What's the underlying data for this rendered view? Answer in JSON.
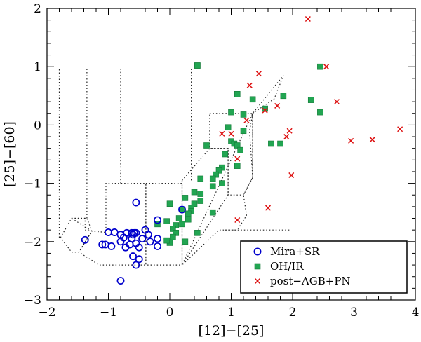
{
  "chart_data": {
    "type": "scatter",
    "title": "",
    "xlabel": "[12]−[25]",
    "ylabel": "[25]−[60]",
    "xlim": [
      -2,
      4
    ],
    "ylim": [
      -3,
      2
    ],
    "xticks": [
      -2,
      -1,
      0,
      1,
      2,
      3,
      4
    ],
    "yticks": [
      -3,
      -2,
      -1,
      0,
      1,
      2
    ],
    "xtick_labels": [
      "−2",
      "−1",
      "0",
      "1",
      "2",
      "3",
      "4"
    ],
    "ytick_labels": [
      "−3",
      "−2",
      "−1",
      "0",
      "1",
      "2"
    ],
    "legend_position": "bottom-right",
    "series": [
      {
        "name": "Mira+SR",
        "marker": "open-circle",
        "color": "#0000cc",
        "points": [
          [
            -0.55,
            -1.33
          ],
          [
            -0.2,
            -1.63
          ],
          [
            -0.4,
            -1.8
          ],
          [
            -0.35,
            -1.88
          ],
          [
            -0.2,
            -1.95
          ],
          [
            -0.2,
            -2.08
          ],
          [
            -0.45,
            -1.95
          ],
          [
            -0.55,
            -1.85
          ],
          [
            -0.58,
            -1.85
          ],
          [
            -0.6,
            -1.88
          ],
          [
            -0.62,
            -1.85
          ],
          [
            -0.62,
            -1.95
          ],
          [
            -0.7,
            -1.85
          ],
          [
            -0.8,
            -1.88
          ],
          [
            -0.9,
            -1.84
          ],
          [
            -1.0,
            -1.84
          ],
          [
            -0.75,
            -1.93
          ],
          [
            -0.8,
            -2.0
          ],
          [
            -0.72,
            -2.1
          ],
          [
            -0.65,
            -2.05
          ],
          [
            -0.55,
            -2.03
          ],
          [
            -0.5,
            -2.1
          ],
          [
            -0.32,
            -2.0
          ],
          [
            -0.6,
            -2.25
          ],
          [
            -0.5,
            -2.3
          ],
          [
            -0.55,
            -2.4
          ],
          [
            -0.8,
            -2.67
          ],
          [
            -1.05,
            -2.05
          ],
          [
            -1.1,
            -2.05
          ],
          [
            -0.95,
            -2.08
          ],
          [
            -1.38,
            -1.97
          ],
          [
            0.2,
            -1.45
          ]
        ]
      },
      {
        "name": "OH/IR",
        "marker": "filled-square",
        "color": "#22a552",
        "points": [
          [
            0.45,
            1.02
          ],
          [
            0.45,
            1.02
          ],
          [
            2.45,
            1.0
          ],
          [
            1.1,
            0.53
          ],
          [
            1.85,
            0.5
          ],
          [
            1.35,
            0.44
          ],
          [
            2.3,
            0.43
          ],
          [
            1.55,
            0.28
          ],
          [
            2.45,
            0.22
          ],
          [
            1.0,
            0.22
          ],
          [
            1.2,
            0.18
          ],
          [
            0.95,
            -0.04
          ],
          [
            1.2,
            -0.1
          ],
          [
            1.65,
            -0.32
          ],
          [
            1.8,
            -0.32
          ],
          [
            1.0,
            -0.28
          ],
          [
            1.05,
            -0.32
          ],
          [
            0.6,
            -0.35
          ],
          [
            1.1,
            -0.35
          ],
          [
            1.15,
            -0.43
          ],
          [
            0.9,
            -0.5
          ],
          [
            1.1,
            -0.7
          ],
          [
            0.85,
            -0.73
          ],
          [
            0.8,
            -0.78
          ],
          [
            0.75,
            -0.85
          ],
          [
            0.5,
            -0.92
          ],
          [
            0.7,
            -0.92
          ],
          [
            0.85,
            -1.0
          ],
          [
            0.7,
            -1.05
          ],
          [
            0.4,
            -1.15
          ],
          [
            0.5,
            -1.18
          ],
          [
            0.25,
            -1.25
          ],
          [
            0.5,
            -1.3
          ],
          [
            0.0,
            -1.35
          ],
          [
            0.4,
            -1.35
          ],
          [
            0.35,
            -1.42
          ],
          [
            0.35,
            -1.48
          ],
          [
            0.3,
            -1.52
          ],
          [
            0.2,
            -1.45
          ],
          [
            0.7,
            -1.5
          ],
          [
            -0.05,
            -1.65
          ],
          [
            0.15,
            -1.6
          ],
          [
            0.1,
            -1.72
          ],
          [
            0.05,
            -1.78
          ],
          [
            0.2,
            -1.7
          ],
          [
            0.3,
            -1.62
          ],
          [
            0.1,
            -1.85
          ],
          [
            0.05,
            -1.92
          ],
          [
            0.0,
            -2.02
          ],
          [
            -0.05,
            -1.98
          ],
          [
            0.25,
            -2.0
          ],
          [
            0.45,
            -1.85
          ],
          [
            -0.2,
            -1.7
          ]
        ]
      },
      {
        "name": "post−AGB+PN",
        "marker": "cross",
        "color": "#dd1111",
        "points": [
          [
            2.25,
            1.82
          ],
          [
            1.45,
            0.88
          ],
          [
            2.55,
            1.0
          ],
          [
            1.3,
            0.68
          ],
          [
            2.72,
            0.4
          ],
          [
            1.55,
            0.25
          ],
          [
            1.75,
            0.33
          ],
          [
            1.25,
            0.08
          ],
          [
            1.95,
            -0.1
          ],
          [
            1.9,
            -0.2
          ],
          [
            0.85,
            -0.15
          ],
          [
            1.0,
            -0.15
          ],
          [
            1.1,
            -0.58
          ],
          [
            3.75,
            -0.07
          ],
          [
            2.95,
            -0.27
          ],
          [
            3.3,
            -0.25
          ],
          [
            1.98,
            -0.86
          ],
          [
            1.6,
            -1.42
          ],
          [
            1.1,
            -1.63
          ]
        ]
      }
    ],
    "regions": [
      {
        "name": "region-i",
        "polygon": [
          [
            -1.78,
            -1.93
          ],
          [
            -1.6,
            -1.6
          ],
          [
            -1.35,
            -1.6
          ],
          [
            -1.27,
            -1.82
          ],
          [
            -1.48,
            -2.18
          ],
          [
            -1.6,
            -2.18
          ]
        ]
      },
      {
        "name": "region-ii",
        "polygon": [
          [
            -1.6,
            -1.6
          ],
          [
            -1.38,
            -1.6
          ],
          [
            -1.38,
            -1.8
          ],
          [
            -1.27,
            -1.82
          ],
          [
            -1.04,
            -1.84
          ],
          [
            -1.04,
            -1.0
          ],
          [
            -0.39,
            -1.0
          ],
          [
            -0.39,
            -2.4
          ],
          [
            -1.15,
            -2.4
          ],
          [
            -1.48,
            -2.18
          ],
          [
            -1.27,
            -1.82
          ]
        ]
      },
      {
        "name": "region-iiia",
        "polygon": [
          [
            -0.39,
            -1.0
          ],
          [
            0.2,
            -1.0
          ],
          [
            0.2,
            -2.4
          ],
          [
            -0.39,
            -2.4
          ]
        ]
      },
      {
        "name": "region-iiib",
        "polygon": [
          [
            0.2,
            -0.95
          ],
          [
            0.65,
            -0.4
          ],
          [
            0.95,
            -0.4
          ],
          [
            0.95,
            -1.2
          ],
          [
            0.2,
            -2.4
          ]
        ]
      },
      {
        "name": "region-iv",
        "polygon": [
          [
            0.65,
            0.2
          ],
          [
            1.35,
            0.2
          ],
          [
            1.35,
            -0.9
          ],
          [
            1.2,
            -1.2
          ],
          [
            0.95,
            -1.2
          ],
          [
            0.95,
            -0.4
          ],
          [
            0.65,
            -0.4
          ]
        ]
      },
      {
        "name": "region-v",
        "polygon": [
          [
            1.35,
            0.2
          ],
          [
            1.3,
            -0.1
          ],
          [
            1.35,
            -0.9
          ],
          [
            1.2,
            -1.2
          ],
          [
            1.25,
            -1.55
          ],
          [
            1.1,
            -1.8
          ],
          [
            0.8,
            -1.8
          ],
          [
            0.2,
            -2.4
          ]
        ]
      },
      {
        "name": "region-vi",
        "polygon": [
          [
            0.9,
            -1.8
          ],
          [
            1.95,
            -1.8
          ]
        ]
      },
      {
        "name": "region-vii",
        "polygon": [
          [
            1.35,
            0.2
          ],
          [
            1.7,
            0.45
          ],
          [
            1.85,
            0.85
          ],
          [
            1.35,
            0.2
          ],
          [
            1.35,
            -0.9
          ]
        ]
      },
      {
        "name": "region-viii",
        "polygon": [
          [
            -1.35,
            -1.6
          ],
          [
            -1.35,
            0.97
          ]
        ]
      },
      {
        "name": "region-ix",
        "polygon": [
          [
            -0.8,
            -1.0
          ],
          [
            -0.8,
            1.0
          ]
        ]
      },
      {
        "name": "region-x",
        "polygon": [
          [
            0.35,
            -0.95
          ],
          [
            0.35,
            1.0
          ]
        ]
      },
      {
        "name": "region-xi",
        "polygon": [
          [
            -1.8,
            -1.93
          ],
          [
            -1.8,
            0.97
          ]
        ]
      }
    ]
  }
}
